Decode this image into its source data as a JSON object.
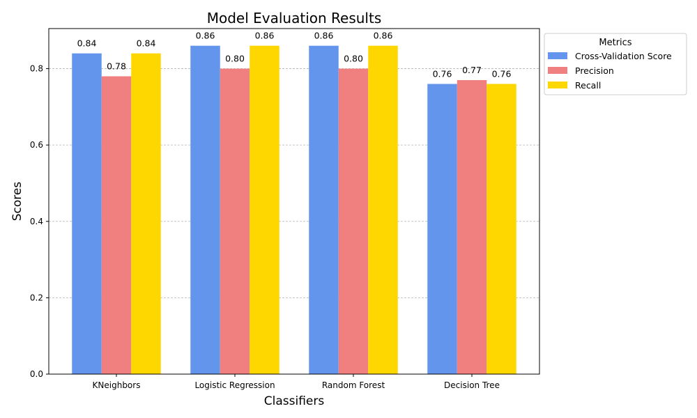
{
  "chart_data": {
    "type": "bar",
    "title": "Model Evaluation Results",
    "xlabel": "Classifiers",
    "ylabel": "Scores",
    "categories": [
      "KNeighbors",
      "Logistic Regression",
      "Random Forest",
      "Decision Tree"
    ],
    "series": [
      {
        "name": "Cross-Validation Score",
        "color": "#6495ED",
        "values": [
          0.84,
          0.86,
          0.86,
          0.76
        ],
        "labels": [
          "0.84",
          "0.86",
          "0.86",
          "0.76"
        ]
      },
      {
        "name": "Precision",
        "color": "#F08080",
        "values": [
          0.78,
          0.8,
          0.8,
          0.77
        ],
        "labels": [
          "0.78",
          "0.80",
          "0.80",
          "0.77"
        ]
      },
      {
        "name": "Recall",
        "color": "#FFD700",
        "values": [
          0.84,
          0.86,
          0.86,
          0.76
        ],
        "labels": [
          "0.84",
          "0.86",
          "0.86",
          "0.76"
        ]
      }
    ],
    "ylim": [
      0,
      0.905
    ],
    "yticks": [
      "0.0",
      "0.2",
      "0.4",
      "0.6",
      "0.8"
    ],
    "grid": "y-dashed",
    "legend": {
      "title": "Metrics",
      "placement": "outside-top-right"
    }
  }
}
